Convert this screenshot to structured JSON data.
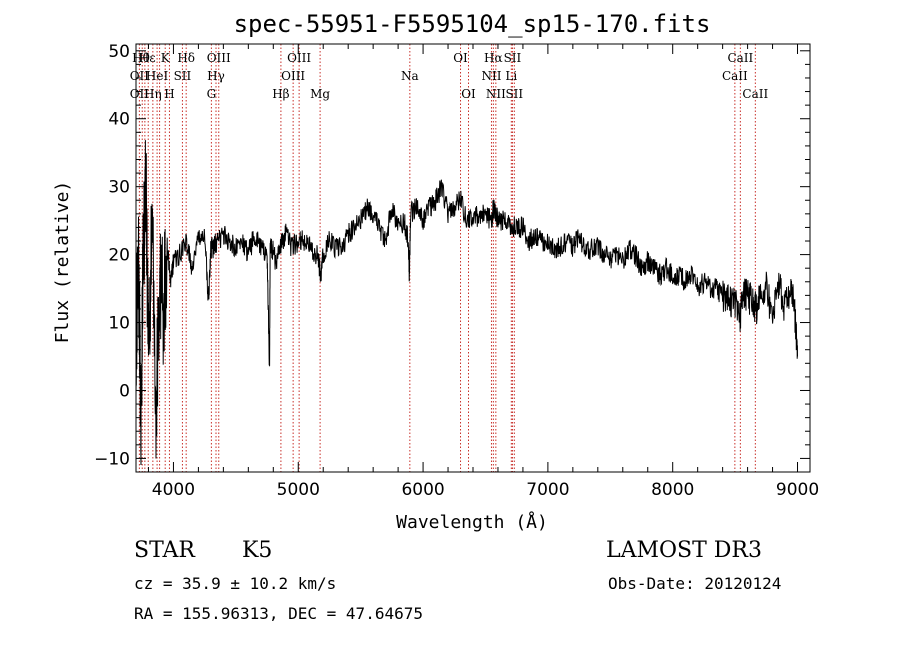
{
  "chart_data": {
    "type": "line",
    "title": "spec-55951-F5595104_sp15-170.fits",
    "xlabel": "Wavelength (Å)",
    "ylabel": "Flux (relative)",
    "xlim": [
      3700,
      9100
    ],
    "ylim": [
      -12,
      51
    ],
    "xticks": [
      4000,
      5000,
      6000,
      7000,
      8000,
      9000
    ],
    "yticks": [
      -10,
      0,
      10,
      20,
      30,
      40,
      50
    ],
    "grid": false,
    "series": [
      {
        "name": "flux",
        "x": [
          3700,
          3720,
          3740,
          3760,
          3780,
          3800,
          3830,
          3860,
          3890,
          3920,
          3950,
          3980,
          4000,
          4050,
          4100,
          4150,
          4200,
          4250,
          4280,
          4300,
          4320,
          4350,
          4400,
          4450,
          4500,
          4550,
          4600,
          4650,
          4700,
          4750,
          4770,
          4775,
          4790,
          4820,
          4850,
          4880,
          4900,
          4950,
          5000,
          5050,
          5100,
          5150,
          5180,
          5200,
          5250,
          5300,
          5350,
          5400,
          5450,
          5500,
          5550,
          5600,
          5650,
          5700,
          5750,
          5800,
          5850,
          5880,
          5890,
          5900,
          5950,
          6000,
          6050,
          6100,
          6150,
          6200,
          6250,
          6300,
          6350,
          6400,
          6450,
          6500,
          6550,
          6563,
          6600,
          6650,
          6700,
          6750,
          6800,
          6850,
          6900,
          6950,
          7000,
          7050,
          7100,
          7150,
          7200,
          7250,
          7300,
          7350,
          7400,
          7450,
          7500,
          7550,
          7600,
          7650,
          7700,
          7750,
          7800,
          7850,
          7900,
          7950,
          8000,
          8050,
          8100,
          8150,
          8200,
          8250,
          8300,
          8350,
          8400,
          8450,
          8500,
          8540,
          8560,
          8600,
          8640,
          8670,
          8700,
          8750,
          8800,
          8850,
          8900,
          8950,
          8980,
          9000
        ],
        "y": [
          8,
          18,
          -3,
          22,
          30,
          6,
          24,
          -4,
          18,
          12,
          21,
          16,
          19,
          20,
          22,
          18,
          22,
          23,
          13,
          21,
          21,
          22,
          23,
          22,
          21,
          22,
          20,
          23,
          21,
          20,
          3,
          21,
          21,
          19,
          21,
          22,
          23,
          21,
          22,
          22,
          21,
          20,
          17,
          20,
          22,
          21,
          21,
          23,
          24,
          25,
          27,
          26,
          24,
          22,
          27,
          24,
          25,
          22,
          17,
          26,
          27,
          25,
          27,
          28,
          30,
          26,
          27,
          28,
          25,
          25,
          26,
          26,
          25,
          27,
          25,
          25,
          24,
          24,
          24,
          22,
          23,
          22,
          22,
          21,
          21,
          22,
          21,
          23,
          20,
          21,
          21,
          20,
          19,
          20,
          19,
          21,
          20,
          18,
          19,
          18,
          17,
          18,
          17,
          17,
          16,
          17,
          15,
          16,
          15,
          15,
          14,
          13,
          13,
          11,
          14,
          14,
          13,
          12,
          14,
          15,
          11,
          16,
          12,
          16,
          11,
          5
        ]
      }
    ],
    "lines": [
      {
        "x": 3727,
        "label": "OII"
      },
      {
        "x": 3750,
        "label": "Hθ"
      },
      {
        "x": 3771,
        "label": "Hη"
      },
      {
        "x": 3798,
        "label": "Hη"
      },
      {
        "x": 3835,
        "label": "Hη"
      },
      {
        "x": 3869,
        "label": "HeI"
      },
      {
        "x": 3889,
        "label": "Hη"
      },
      {
        "x": 3934,
        "label": "K"
      },
      {
        "x": 3968,
        "label": "H"
      },
      {
        "x": 4072,
        "label": "SII"
      },
      {
        "x": 4102,
        "label": "Hδ"
      },
      {
        "x": 4304,
        "label": "G"
      },
      {
        "x": 4341,
        "label": "Hγ"
      },
      {
        "x": 4363,
        "label": "OIII"
      },
      {
        "x": 4861,
        "label": "Hβ"
      },
      {
        "x": 4959,
        "label": "OIII"
      },
      {
        "x": 5007,
        "label": "OIII"
      },
      {
        "x": 5175,
        "label": "Mg"
      },
      {
        "x": 5894,
        "label": "Na"
      },
      {
        "x": 6300,
        "label": "OI"
      },
      {
        "x": 6364,
        "label": "OI"
      },
      {
        "x": 6548,
        "label": "NII"
      },
      {
        "x": 6563,
        "label": "Hα"
      },
      {
        "x": 6583,
        "label": "NII"
      },
      {
        "x": 6707,
        "label": "Li"
      },
      {
        "x": 6716,
        "label": "SII"
      },
      {
        "x": 6731,
        "label": "SII"
      },
      {
        "x": 8498,
        "label": "CaII"
      },
      {
        "x": 8542,
        "label": "CaII"
      },
      {
        "x": 8662,
        "label": "CaII"
      }
    ],
    "line_labels": [
      {
        "text": "Hθ",
        "row": 0,
        "x": 3740
      },
      {
        "text": "Hε",
        "row": 0,
        "x": 3790
      },
      {
        "text": "K",
        "row": 0,
        "x": 3934
      },
      {
        "text": "Hδ",
        "row": 0,
        "x": 4102
      },
      {
        "text": "OIII",
        "row": 0,
        "x": 4363
      },
      {
        "text": "OIII",
        "row": 0,
        "x": 5007
      },
      {
        "text": "OI",
        "row": 0,
        "x": 6300
      },
      {
        "text": "Hα",
        "row": 0,
        "x": 6563
      },
      {
        "text": "SII",
        "row": 0,
        "x": 6716
      },
      {
        "text": "CaII",
        "row": 0,
        "x": 8542
      },
      {
        "text": "OII",
        "row": 1,
        "x": 3727
      },
      {
        "text": "HeI",
        "row": 1,
        "x": 3869
      },
      {
        "text": "SII",
        "row": 1,
        "x": 4072
      },
      {
        "text": "Hγ",
        "row": 1,
        "x": 4341
      },
      {
        "text": "OIII",
        "row": 1,
        "x": 4959
      },
      {
        "text": "NII",
        "row": 1,
        "x": 6548
      },
      {
        "text": "Li",
        "row": 1,
        "x": 6707
      },
      {
        "text": "CaII",
        "row": 1,
        "x": 8498
      },
      {
        "text": "Na",
        "row": 1,
        "x": 5894
      },
      {
        "text": "OII",
        "row": 2,
        "x": 3727
      },
      {
        "text": "Hη",
        "row": 2,
        "x": 3835
      },
      {
        "text": "H",
        "row": 2,
        "x": 3968
      },
      {
        "text": "G",
        "row": 2,
        "x": 4304
      },
      {
        "text": "Hβ",
        "row": 2,
        "x": 4861
      },
      {
        "text": "Mg",
        "row": 2,
        "x": 5175
      },
      {
        "text": "OI",
        "row": 2,
        "x": 6364
      },
      {
        "text": "NII",
        "row": 2,
        "x": 6583
      },
      {
        "text": "SII",
        "row": 2,
        "x": 6731
      },
      {
        "text": "CaII",
        "row": 2,
        "x": 8662
      }
    ],
    "line_color": "#c8302a",
    "series_color": "#000000"
  },
  "info": {
    "class": "STAR",
    "subclass": "K5",
    "survey": "LAMOST DR3",
    "cz": "cz = 35.9 ± 10.2 km/s",
    "obs_date": "Obs-Date: 20120124",
    "radec": "RA = 155.96313, DEC =  47.64675"
  }
}
